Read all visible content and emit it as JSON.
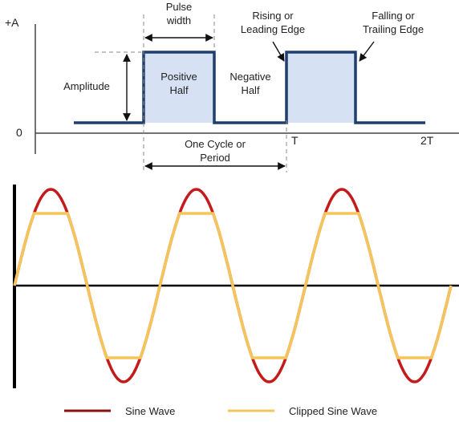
{
  "pulse_diagram": {
    "y_top_label": "+A",
    "y_zero_label": "0",
    "t_label": "T",
    "two_t_label": "2T",
    "pulse_width_line1": "Pulse",
    "pulse_width_line2": "width",
    "amplitude_label": "Amplitude",
    "positive_half_line1": "Positive",
    "positive_half_line2": "Half",
    "negative_half_line1": "Negative",
    "negative_half_line2": "Half",
    "rising_line1": "Rising or",
    "rising_line2": "Leading Edge",
    "falling_line1": "Falling or",
    "falling_line2": "Trailing Edge",
    "cycle_line1": "One Cycle or",
    "cycle_line2": "Period",
    "colors": {
      "pulse": "#1f3f6e",
      "fill": "#d6e2f3"
    }
  },
  "wave_diagram": {
    "legend": {
      "sine_label": "Sine Wave",
      "clipped_label": "Clipped Sine Wave"
    },
    "clip_level": 0.75,
    "cycles": 3,
    "colors": {
      "sine": "#c41a1a",
      "clipped": "#f5c55a",
      "axis": "#000000"
    }
  }
}
